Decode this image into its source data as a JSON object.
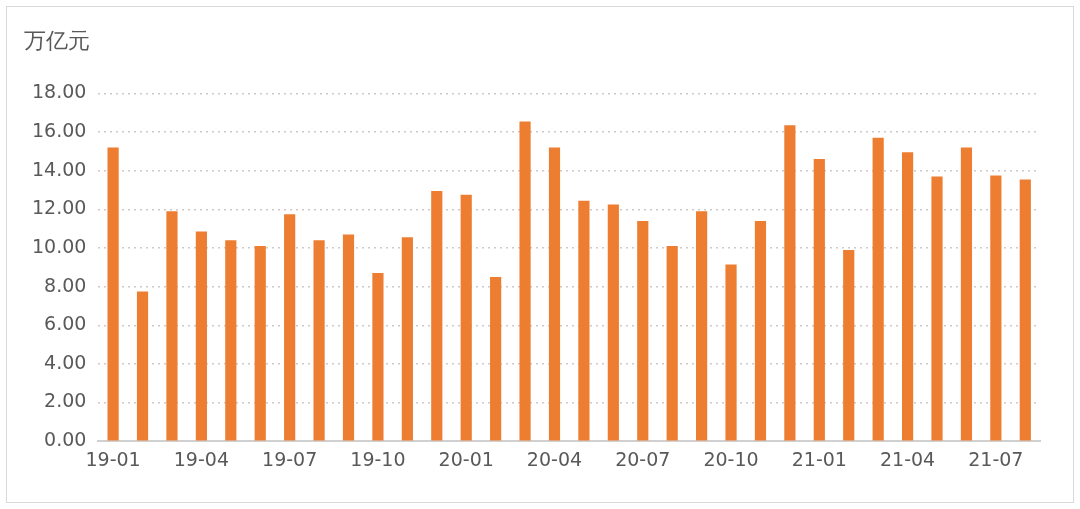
{
  "chart_data": {
    "type": "bar",
    "ylabel": "万亿元",
    "categories": [
      "19-01",
      null,
      null,
      "19-04",
      null,
      null,
      "19-07",
      null,
      null,
      "19-10",
      null,
      null,
      "20-01",
      null,
      null,
      "20-04",
      null,
      null,
      "20-07",
      null,
      null,
      "20-10",
      null,
      null,
      "21-01",
      null,
      null,
      "21-04",
      null,
      null,
      "21-07",
      null
    ],
    "values": [
      15.2,
      7.75,
      11.9,
      10.85,
      10.4,
      10.1,
      11.75,
      10.4,
      10.7,
      8.7,
      10.55,
      12.95,
      12.75,
      8.5,
      16.55,
      15.2,
      12.45,
      12.25,
      11.4,
      10.1,
      11.9,
      9.15,
      11.4,
      16.35,
      14.6,
      9.9,
      15.7,
      14.95,
      13.7,
      15.2,
      13.75,
      13.55
    ],
    "color": "#ed7d31",
    "ylim": [
      0,
      18
    ],
    "yticks": [
      {
        "value": 0,
        "label": "0.00"
      },
      {
        "value": 2,
        "label": "2.00"
      },
      {
        "value": 4,
        "label": "4.00"
      },
      {
        "value": 6,
        "label": "6.00"
      },
      {
        "value": 8,
        "label": "8.00"
      },
      {
        "value": 10,
        "label": "10.00"
      },
      {
        "value": 12,
        "label": "12.00"
      },
      {
        "value": 14,
        "label": "14.00"
      },
      {
        "value": 16,
        "label": "16.00"
      },
      {
        "value": 18,
        "label": "18.00"
      }
    ],
    "grid": "y"
  }
}
